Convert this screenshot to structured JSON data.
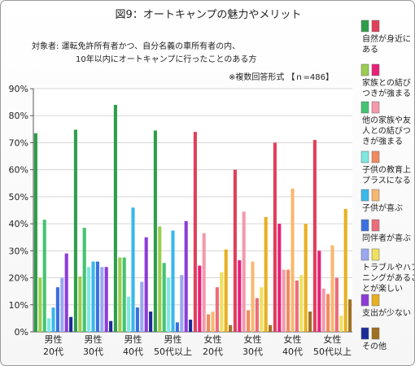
{
  "title": "図9：オートキャンプの魅力やメリット",
  "subject_label": "対象者:",
  "subject_line1": "運転免許所有者かつ、自分名義の車所有者の内、",
  "subject_line2": "10年以内にオートキャンプに行ったことのある方",
  "note": "※複数回答形式 【ｎ=486】",
  "chart_data": {
    "type": "bar",
    "ylim": [
      0,
      90
    ],
    "y_ticks": [
      "0%",
      "10%",
      "20%",
      "30%",
      "40%",
      "50%",
      "60%",
      "70%",
      "80%",
      "90%"
    ],
    "categories": [
      {
        "line1": "男性",
        "line2": "20代"
      },
      {
        "line1": "男性",
        "line2": "30代"
      },
      {
        "line1": "男性",
        "line2": "40代"
      },
      {
        "line1": "男性",
        "line2": "50代以上"
      },
      {
        "line1": "女性",
        "line2": "20代"
      },
      {
        "line1": "女性",
        "line2": "30代"
      },
      {
        "line1": "女性",
        "line2": "40代"
      },
      {
        "line1": "女性",
        "line2": "50代以上"
      }
    ],
    "series": [
      {
        "name": "自然が身近にある",
        "label_lines": [
          "自然が身近に",
          "ある"
        ],
        "color_male": "#2e9e4a",
        "color_female": "#e0405a",
        "values": [
          73.5,
          74.8,
          84.0,
          74.5,
          74.0,
          60.0,
          70.0,
          71.0
        ]
      },
      {
        "name": "家族との結びつきが強まる",
        "label_lines": [
          "家族との結び",
          "つきが強まる"
        ],
        "color_male": "#9ccc50",
        "color_female": "#e8207a",
        "values": [
          20.0,
          20.5,
          27.5,
          39.0,
          24.5,
          26.5,
          40.0,
          30.0
        ]
      },
      {
        "name": "他の家族や友人との結びつきが強まる",
        "label_lines": [
          "他の家族や友",
          "人との結びつ",
          "きが強まる"
        ],
        "color_male": "#44c470",
        "color_female": "#f49aac",
        "values": [
          41.5,
          38.5,
          27.5,
          25.5,
          36.5,
          44.5,
          23.0,
          16.0
        ]
      },
      {
        "name": "子供の教育上プラスになる",
        "label_lines": [
          "子供の教育上",
          "プラスになる"
        ],
        "color_male": "#7ee8e0",
        "color_female": "#f08a60",
        "values": [
          5.0,
          24.0,
          13.0,
          20.0,
          6.5,
          8.0,
          23.0,
          14.0
        ]
      },
      {
        "name": "子供が喜ぶ",
        "label_lines": [
          "子供が喜ぶ"
        ],
        "color_male": "#38b8ec",
        "color_female": "#f8b870",
        "values": [
          9.0,
          26.0,
          46.0,
          37.5,
          7.5,
          26.0,
          53.0,
          32.0
        ]
      },
      {
        "name": "同伴者が喜ぶ",
        "label_lines": [
          "同伴者が喜ぶ"
        ],
        "color_male": "#3a70e0",
        "color_female": "#ec6c7c",
        "values": [
          16.5,
          26.0,
          9.0,
          3.5,
          16.5,
          12.5,
          19.0,
          20.0
        ]
      },
      {
        "name": "トラブルやハプニングがあることが楽しい",
        "label_lines": [
          "トラブルやハプ",
          "ニングがあるこ",
          "とが楽しい"
        ],
        "color_male": "#9aa8f0",
        "color_female": "#f0e060",
        "values": [
          20.0,
          24.0,
          18.5,
          21.0,
          22.0,
          16.5,
          21.0,
          6.0
        ]
      },
      {
        "name": "支出が少ない",
        "label_lines": [
          "支出が少ない"
        ],
        "color_male": "#8c3cd8",
        "color_female": "#e8b020",
        "values": [
          29.0,
          24.0,
          35.0,
          41.0,
          30.5,
          42.5,
          40.0,
          45.5
        ]
      },
      {
        "name": "その他",
        "label_lines": [
          "その他"
        ],
        "color_male": "#1c2a98",
        "color_female": "#a07020",
        "values": [
          5.5,
          4.0,
          7.5,
          4.5,
          2.5,
          2.5,
          7.5,
          12.0
        ]
      }
    ]
  }
}
